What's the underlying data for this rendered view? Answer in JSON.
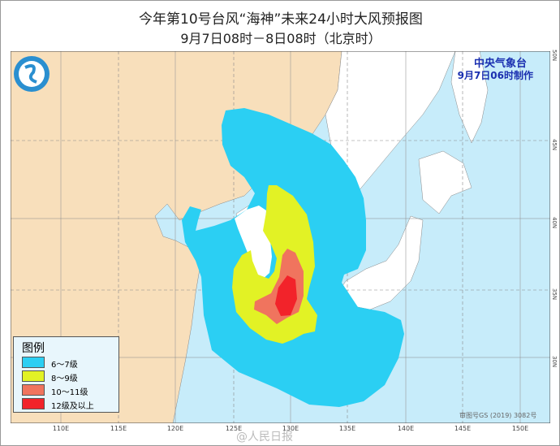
{
  "title": "今年第10号台风“海神”未来24小时大风预报图",
  "subtitle": "9月7日08时－8日08时（北京时）",
  "agency": {
    "name": "中央气象台",
    "issued": "9月7日06时制作"
  },
  "legend": {
    "title": "图例",
    "items": [
      {
        "label": "6～7级",
        "color": "#2bcff3"
      },
      {
        "label": "8～9级",
        "color": "#e2f225"
      },
      {
        "label": "10～11级",
        "color": "#f0745e"
      },
      {
        "label": "12级及以上",
        "color": "#f2232a"
      }
    ]
  },
  "colors": {
    "sea": "#c7ecfa",
    "china_land": "#f8dfbb",
    "other_land": "#ffffff"
  },
  "lon_labels": [
    "110E",
    "115E",
    "120E",
    "125E",
    "130E",
    "135E",
    "140E",
    "145E",
    "150E"
  ],
  "lat_labels": [
    "50N",
    "45N",
    "40N",
    "35N",
    "30N"
  ],
  "approval": "审图号GS (2019) 3082号",
  "watermark": "@人民日报"
}
